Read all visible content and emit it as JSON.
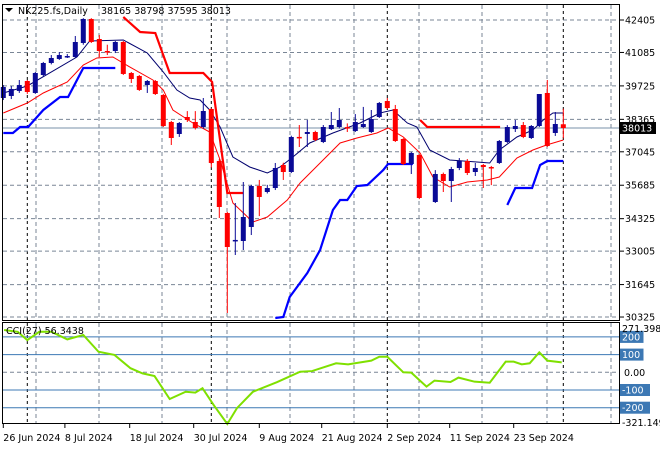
{
  "header": {
    "symbol_timeframe": "NK225.fs,Daily",
    "ohlc": "38165 38798 37595 38013",
    "collapse_icon": "triangle-down-icon"
  },
  "colors": {
    "bull": "#0a0a96",
    "bear": "#ff0000",
    "ma_fast": "#00006e",
    "ma_slow": "#ff0000",
    "upper_band": "#ff0000",
    "lower_band": "#0000ff",
    "cci": "#7fe000",
    "cci_levels": "#3c78b4",
    "grid": "#7a8696"
  },
  "chart_data": [
    {
      "type": "candlestick",
      "title": "NK225.fs,Daily",
      "current_price": 38013,
      "current_price_label": "38013",
      "ylim": [
        30325,
        42405
      ],
      "yticks": [
        "42405",
        "41085",
        "39725",
        "38365",
        "37045",
        "35685",
        "34325",
        "33005",
        "31645",
        "30325"
      ],
      "ytick_values": [
        42405,
        41085,
        39725,
        38365,
        37045,
        35685,
        34325,
        33005,
        31645,
        30325
      ],
      "xticks": [
        {
          "label": "26 Jun 2024",
          "bar": 0
        },
        {
          "label": "8 Jul 2024",
          "bar": 7.7
        },
        {
          "label": "18 Jul 2024",
          "bar": 15.8
        },
        {
          "label": "30 Jul 2024",
          "bar": 23.8
        },
        {
          "label": "9 Aug 2024",
          "bar": 32
        },
        {
          "label": "21 Aug 2024",
          "bar": 39.8
        },
        {
          "label": "2 Sep 2024",
          "bar": 48
        },
        {
          "label": "11 Sep 2024",
          "bar": 55.8
        },
        {
          "label": "23 Sep 2024",
          "bar": 63.8
        }
      ],
      "period_separators": [
        3,
        26,
        48,
        70
      ],
      "ohlc": [
        [
          39233,
          39760,
          39150,
          39680
        ],
        [
          39315,
          39720,
          39190,
          39600
        ],
        [
          39520,
          39965,
          39440,
          39760
        ],
        [
          39924,
          39965,
          39400,
          39477
        ],
        [
          39437,
          40290,
          39400,
          40250
        ],
        [
          40168,
          40700,
          40100,
          40656
        ],
        [
          40656,
          40980,
          40600,
          40860
        ],
        [
          40820,
          41100,
          40780,
          40980
        ],
        [
          40900,
          41020,
          40860,
          40940
        ],
        [
          40900,
          41755,
          40860,
          41510
        ],
        [
          41470,
          42480,
          41400,
          42446
        ],
        [
          42446,
          42480,
          41470,
          41510
        ],
        [
          41632,
          41795,
          40900,
          41144
        ],
        [
          41144,
          41400,
          40980,
          41100
        ],
        [
          41144,
          41550,
          41060,
          41510
        ],
        [
          41510,
          41550,
          40170,
          40210
        ],
        [
          40250,
          40290,
          39843,
          40006
        ],
        [
          40128,
          40168,
          39520,
          39560
        ],
        [
          39760,
          39965,
          39437,
          39924
        ],
        [
          39924,
          39965,
          39355,
          39395
        ],
        [
          39355,
          39400,
          38050,
          38094
        ],
        [
          38257,
          38300,
          37322,
          37606
        ],
        [
          37769,
          38257,
          37650,
          38216
        ],
        [
          38460,
          38700,
          38257,
          38338
        ],
        [
          38257,
          38700,
          37950,
          38013
        ],
        [
          38053,
          39233,
          37990,
          38704
        ],
        [
          38786,
          38820,
          36400,
          36590
        ],
        [
          36670,
          36750,
          34353,
          34800
        ],
        [
          34556,
          34600,
          30489,
          33173
        ],
        [
          33420,
          34963,
          32848,
          33460
        ],
        [
          33417,
          35817,
          33050,
          34393
        ],
        [
          33987,
          35700,
          33660,
          35654
        ],
        [
          35654,
          35900,
          34430,
          35207
        ],
        [
          35410,
          35700,
          35350,
          35572
        ],
        [
          35572,
          36590,
          35490,
          36386
        ],
        [
          36508,
          36600,
          35900,
          36223
        ],
        [
          36223,
          37700,
          36180,
          37647
        ],
        [
          37650,
          38134,
          37240,
          37610
        ],
        [
          37770,
          38338,
          37240,
          37850
        ],
        [
          37850,
          37900,
          37480,
          37525
        ],
        [
          37443,
          38134,
          37400,
          38053
        ],
        [
          37970,
          38663,
          37930,
          38134
        ],
        [
          38053,
          38826,
          37990,
          38338
        ],
        [
          38050,
          38200,
          37850,
          38013
        ],
        [
          37890,
          38580,
          37850,
          38257
        ],
        [
          38053,
          38870,
          38013,
          38175
        ],
        [
          37850,
          38745,
          37810,
          38379
        ],
        [
          38460,
          39070,
          38420,
          39030
        ],
        [
          39110,
          39233,
          38786,
          38826
        ],
        [
          38786,
          38950,
          37443,
          37484
        ],
        [
          37565,
          37600,
          36508,
          36549
        ],
        [
          36549,
          37040,
          36142,
          36996
        ],
        [
          36915,
          36950,
          35120,
          35166
        ],
        null,
        [
          35003,
          36300,
          34963,
          36142
        ],
        [
          36142,
          36200,
          35410,
          35857
        ],
        [
          35857,
          36430,
          35003,
          36345
        ],
        [
          36386,
          36790,
          36300,
          36670
        ],
        [
          36670,
          36750,
          36100,
          36183
        ],
        [
          36223,
          36590,
          36060,
          36386
        ],
        [
          36508,
          36550,
          35572,
          36426
        ],
        [
          36426,
          36470,
          35690,
          36386
        ],
        [
          36590,
          37525,
          36550,
          37484
        ],
        [
          37443,
          38130,
          37400,
          38053
        ],
        [
          37970,
          38338,
          37850,
          38094
        ],
        [
          38134,
          38257,
          37600,
          37647
        ],
        [
          37606,
          38134,
          37565,
          38094
        ],
        [
          38094,
          39395,
          38050,
          39395
        ],
        [
          39437,
          39965,
          37240,
          37280
        ],
        [
          37810,
          38663,
          37690,
          38175
        ],
        [
          38165,
          38798,
          37595,
          38013
        ]
      ],
      "lines": [
        {
          "name": "ma_fast",
          "width": 1,
          "segments": [
            [
              [
                0,
                39436
              ],
              [
                3,
                39721
              ],
              [
                5.8,
                40250
              ],
              [
                9.2,
                40900
              ],
              [
                10.8,
                41551
              ],
              [
                15,
                41592
              ],
              [
                18,
                41063
              ],
              [
                20,
                40290
              ],
              [
                21.7,
                39558
              ],
              [
                23.3,
                39233
              ],
              [
                24.6,
                39151
              ],
              [
                25.8,
                38745
              ],
              [
                27.1,
                38053
              ],
              [
                28.7,
                36833
              ],
              [
                30.8,
                36427
              ],
              [
                33,
                36183
              ],
              [
                34.6,
                36427
              ],
              [
                36.2,
                36833
              ],
              [
                38.3,
                37403
              ],
              [
                41.2,
                37809
              ],
              [
                44.6,
                38216
              ],
              [
                47.1,
                38623
              ],
              [
                48.7,
                38745
              ],
              [
                50.5,
                38216
              ],
              [
                51.7,
                38053
              ],
              [
                53.3,
                37118
              ],
              [
                55.8,
                36711
              ],
              [
                59.2,
                36630
              ],
              [
                60.8,
                36589
              ],
              [
                62,
                37118
              ],
              [
                64.2,
                37647
              ],
              [
                66.2,
                37931
              ],
              [
                67.5,
                38338
              ],
              [
                68.7,
                38623
              ],
              [
                70,
                38623
              ]
            ]
          ]
        },
        {
          "name": "ma_slow",
          "width": 1,
          "segments": [
            [
              [
                0,
                38623
              ],
              [
                3,
                39029
              ],
              [
                5,
                39436
              ],
              [
                8,
                39884
              ],
              [
                10,
                40575
              ],
              [
                11.7,
                40860
              ],
              [
                13.7,
                40900
              ],
              [
                15.8,
                40494
              ],
              [
                18.7,
                39965
              ],
              [
                20,
                39558
              ],
              [
                21.2,
                38745
              ],
              [
                23.7,
                38216
              ],
              [
                25.8,
                37850
              ],
              [
                27.1,
                36711
              ],
              [
                28.7,
                34962
              ],
              [
                31.2,
                34190
              ],
              [
                33,
                34393
              ],
              [
                35.5,
                35084
              ],
              [
                37.1,
                35776
              ],
              [
                39.6,
                36589
              ],
              [
                42.1,
                37403
              ],
              [
                44.2,
                37606
              ],
              [
                46.7,
                37809
              ],
              [
                48.1,
                38013
              ],
              [
                50,
                37647
              ],
              [
                52.1,
                36996
              ],
              [
                53.7,
                36020
              ],
              [
                55.8,
                35613
              ],
              [
                58,
                35816
              ],
              [
                60.5,
                35898
              ],
              [
                62,
                36020
              ],
              [
                64.2,
                36792
              ],
              [
                66.2,
                37118
              ],
              [
                67.9,
                37321
              ],
              [
                70,
                37525
              ]
            ]
          ]
        },
        {
          "name": "upper_band",
          "width": 2.2,
          "segments": [
            [
              [
                15,
                42527
              ],
              [
                17.1,
                41917
              ],
              [
                19,
                41876
              ],
              [
                20.8,
                40250
              ],
              [
                25,
                40250
              ],
              [
                26.1,
                39884
              ],
              [
                28,
                35369
              ],
              [
                30,
                35369
              ]
            ],
            [
              [
                52.1,
                38338
              ],
              [
                53,
                38053
              ],
              [
                62.1,
                38053
              ]
            ]
          ]
        },
        {
          "name": "lower_band",
          "width": 2.2,
          "segments": [
            [
              [
                0,
                37809
              ],
              [
                1.2,
                37809
              ],
              [
                2.1,
                38053
              ],
              [
                3.1,
                38053
              ],
              [
                5,
                38745
              ],
              [
                7.1,
                39273
              ],
              [
                8.1,
                39273
              ],
              [
                10,
                40453
              ],
              [
                14,
                40453
              ]
            ],
            [
              [
                34,
                30285
              ],
              [
                35,
                30326
              ],
              [
                35.8,
                31140
              ],
              [
                38,
                32116
              ],
              [
                39.6,
                33051
              ],
              [
                41.2,
                34678
              ],
              [
                42.1,
                35084
              ],
              [
                43,
                35084
              ],
              [
                44.2,
                35654
              ],
              [
                45.5,
                35694
              ],
              [
                47.5,
                36305
              ],
              [
                48.1,
                36549
              ],
              [
                51.2,
                36549
              ]
            ],
            [
              [
                63,
                34881
              ],
              [
                64,
                35572
              ],
              [
                66.1,
                35572
              ],
              [
                67.1,
                36508
              ],
              [
                68,
                36671
              ],
              [
                70,
                36671
              ]
            ]
          ]
        }
      ]
    },
    {
      "type": "line",
      "title": "CCI(27) 56.3438",
      "ylim": [
        -321.149,
        271.3984
      ],
      "max_label": "271.3984",
      "min_label": "-321.149",
      "levels": [
        {
          "value": 200,
          "label": "200"
        },
        {
          "value": 100,
          "label": "100"
        },
        {
          "value": -100,
          "label": "-100"
        },
        {
          "value": -200,
          "label": "-200"
        }
      ],
      "zero_label": "0.00",
      "points": [
        [
          0.1,
          239
        ],
        [
          1.8,
          229
        ],
        [
          3,
          182
        ],
        [
          4.5,
          229
        ],
        [
          6,
          229
        ],
        [
          8,
          186
        ],
        [
          10,
          211
        ],
        [
          11.9,
          116
        ],
        [
          13.9,
          98
        ],
        [
          15.9,
          23
        ],
        [
          17.4,
          -6
        ],
        [
          18.9,
          -21
        ],
        [
          20.8,
          -151
        ],
        [
          22.8,
          -110
        ],
        [
          24,
          -115
        ],
        [
          24.9,
          -90
        ],
        [
          26.3,
          -185
        ],
        [
          28,
          -292
        ],
        [
          29.2,
          -203
        ],
        [
          31.2,
          -110
        ],
        [
          34.2,
          -56
        ],
        [
          37.1,
          3
        ],
        [
          38.6,
          7
        ],
        [
          41.6,
          51
        ],
        [
          43.1,
          45
        ],
        [
          46,
          66
        ],
        [
          47,
          88
        ],
        [
          48,
          88
        ],
        [
          50,
          0
        ],
        [
          51,
          -2
        ],
        [
          52.9,
          -81
        ],
        [
          53.9,
          -47
        ],
        [
          55.9,
          -55
        ],
        [
          56.9,
          -30
        ],
        [
          58.9,
          -53
        ],
        [
          60.8,
          -59
        ],
        [
          62.8,
          60
        ],
        [
          63.8,
          60
        ],
        [
          64.8,
          45
        ],
        [
          65.8,
          51
        ],
        [
          67,
          113
        ],
        [
          68,
          66
        ],
        [
          69.8,
          56
        ]
      ]
    }
  ]
}
